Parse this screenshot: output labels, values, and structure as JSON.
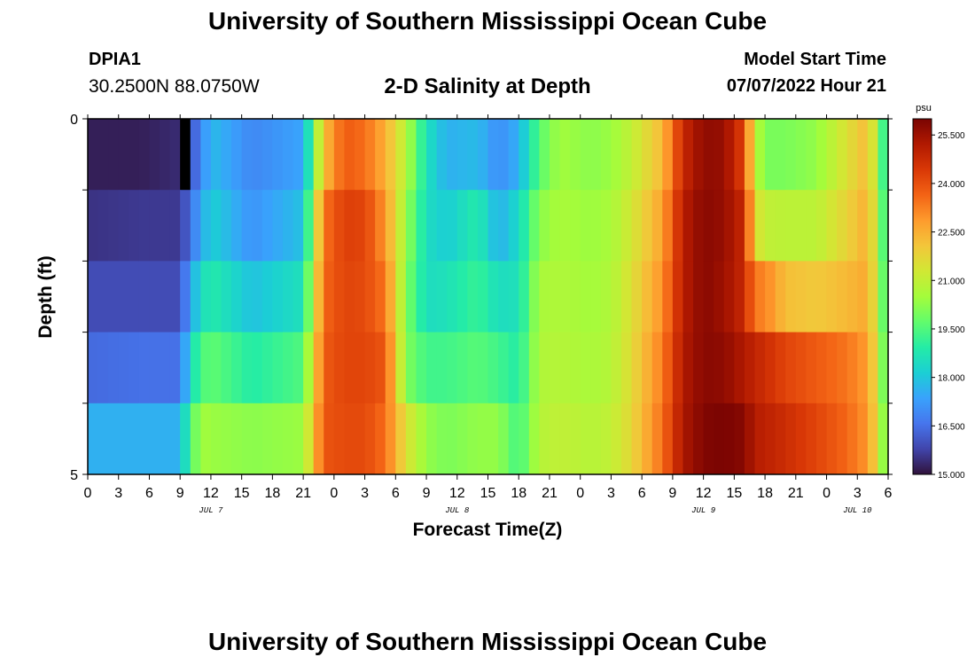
{
  "header": {
    "title": "University of Southern Mississippi Ocean Cube",
    "station_id": "DPIA1",
    "coords": "30.2500N  88.0750W",
    "subtitle": "2-D Salinity at Depth",
    "model_start_label": "Model Start Time",
    "model_start_value": "07/07/2022 Hour 21"
  },
  "footer": {
    "title": "University of Southern Mississippi Ocean Cube"
  },
  "chart_data": {
    "type": "heatmap",
    "title": "2-D Salinity at Depth",
    "xlabel": "Forecast Time(Z)",
    "ylabel": "Depth (ft)",
    "x_hours_range": [
      0,
      78
    ],
    "x_step_hours": 1,
    "x_tick_labels": [
      "0",
      "3",
      "6",
      "9",
      "12",
      "15",
      "18",
      "21",
      "0",
      "3",
      "6",
      "9",
      "12",
      "15",
      "18",
      "21",
      "0",
      "3",
      "6",
      "9",
      "12",
      "15",
      "18",
      "21",
      "0",
      "3",
      "6"
    ],
    "date_labels": [
      {
        "hour": 12,
        "label": "JUL 7"
      },
      {
        "hour": 36,
        "label": "JUL 8"
      },
      {
        "hour": 60,
        "label": "JUL 9"
      },
      {
        "hour": 75,
        "label": "JUL 10"
      }
    ],
    "ylim": [
      0,
      5
    ],
    "y_tick_labels": [
      "0",
      "5"
    ],
    "depth_bands": [
      0,
      1,
      2,
      3,
      4,
      5
    ],
    "colorbar": {
      "unit": "psu",
      "min": 15.0,
      "max": 26.0,
      "tick_values": [
        15.0,
        16.5,
        18.0,
        19.5,
        21.0,
        22.5,
        24.0,
        25.5
      ],
      "tick_labels": [
        "15.000",
        "16.500",
        "18.000",
        "19.500",
        "21.000",
        "22.500",
        "24.000",
        "25.500"
      ]
    },
    "keyframes_hours": [
      0,
      5,
      9,
      10,
      11,
      12,
      16,
      21,
      23,
      25,
      27,
      29,
      31,
      33,
      35,
      38,
      40,
      42,
      44,
      46,
      49,
      51,
      53,
      56,
      58,
      60,
      62,
      64,
      65,
      66,
      68,
      71,
      74,
      76,
      77,
      78
    ],
    "layers": [
      {
        "name": "0-1 ft",
        "values": [
          15.2,
          15.2,
          15.4,
          16.0,
          16.8,
          17.8,
          16.9,
          17.4,
          22.2,
          23.8,
          23.5,
          22.5,
          20.8,
          18.6,
          17.6,
          17.8,
          17.0,
          17.6,
          19.6,
          20.5,
          20.2,
          20.4,
          21.0,
          22.3,
          24.8,
          25.7,
          25.6,
          24.2,
          21.0,
          20.0,
          20.0,
          20.3,
          21.5,
          22.3,
          20.5,
          18.2
        ]
      },
      {
        "name": "1-2 ft",
        "values": [
          15.5,
          15.6,
          15.6,
          16.5,
          17.4,
          18.2,
          17.1,
          17.9,
          23.4,
          24.3,
          24.2,
          22.9,
          20.4,
          18.5,
          18.1,
          18.9,
          17.6,
          18.4,
          20.2,
          20.6,
          20.4,
          20.6,
          21.3,
          22.7,
          25.1,
          25.8,
          25.6,
          24.8,
          21.6,
          21.0,
          20.9,
          20.9,
          21.8,
          22.5,
          20.8,
          18.4
        ]
      },
      {
        "name": "2-3 ft",
        "values": [
          15.9,
          15.9,
          15.9,
          17.4,
          18.4,
          18.9,
          17.9,
          18.6,
          23.6,
          24.2,
          24.1,
          23.4,
          20.1,
          18.5,
          18.6,
          19.2,
          18.5,
          18.6,
          20.6,
          20.7,
          20.5,
          20.7,
          21.5,
          23.0,
          25.1,
          25.8,
          25.5,
          24.8,
          23.3,
          23.2,
          22.2,
          22.0,
          22.3,
          22.6,
          21.0,
          18.6
        ]
      },
      {
        "name": "3-4 ft",
        "values": [
          16.4,
          16.5,
          16.5,
          18.4,
          19.4,
          19.7,
          18.9,
          19.5,
          23.8,
          24.2,
          24.2,
          23.9,
          20.1,
          19.3,
          19.3,
          19.6,
          19.3,
          18.9,
          20.7,
          20.8,
          20.6,
          20.8,
          21.6,
          23.3,
          25.2,
          25.8,
          25.7,
          25.2,
          24.9,
          24.7,
          24.2,
          23.8,
          23.4,
          22.8,
          21.3,
          18.8
        ]
      },
      {
        "name": "4-5 ft",
        "values": [
          17.6,
          17.6,
          17.6,
          19.4,
          20.5,
          20.4,
          20.2,
          20.4,
          23.9,
          24.1,
          24.1,
          23.5,
          21.5,
          20.3,
          20.0,
          20.3,
          20.3,
          19.3,
          20.8,
          21.0,
          20.8,
          21.0,
          21.7,
          23.5,
          25.3,
          25.9,
          26.0,
          25.8,
          25.1,
          25.0,
          24.7,
          24.2,
          23.6,
          22.9,
          21.5,
          19.2
        ]
      }
    ],
    "masked_cells": [
      {
        "hour": 9,
        "layer": 0
      }
    ],
    "colors": {
      "masked": "#000000",
      "frame": "#000000",
      "palette": [
        "#30123b",
        "#4145ab",
        "#4675ed",
        "#39a2fc",
        "#1bcfd4",
        "#24eca6",
        "#61fc6c",
        "#a4fc3b",
        "#d1e834",
        "#f3c63a",
        "#fe9b2d",
        "#f36315",
        "#d93806",
        "#b11901",
        "#7a0402"
      ]
    }
  }
}
